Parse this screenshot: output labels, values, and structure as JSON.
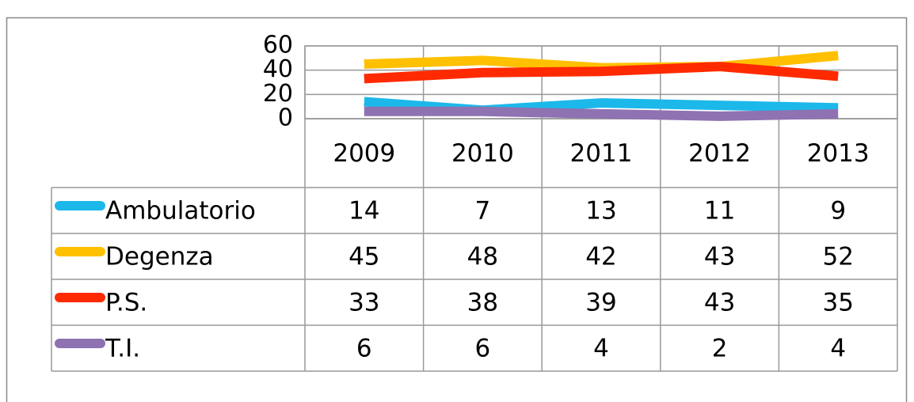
{
  "chart_data": {
    "type": "line",
    "categories": [
      "2009",
      "2010",
      "2011",
      "2012",
      "2013"
    ],
    "series": [
      {
        "name": "Ambulatorio",
        "color": "#1cb8ea",
        "values": [
          14,
          7,
          13,
          11,
          9
        ]
      },
      {
        "name": "Degenza",
        "color": "#ffc000",
        "values": [
          45,
          48,
          42,
          43,
          52
        ]
      },
      {
        "name": "P.S.",
        "color": "#ff2a00",
        "values": [
          33,
          38,
          39,
          43,
          35
        ]
      },
      {
        "name": "T.I.",
        "color": "#8e72b2",
        "values": [
          6,
          6,
          4,
          2,
          4
        ]
      }
    ],
    "ylim": [
      0,
      60
    ],
    "yticks": [
      0,
      20,
      40,
      60
    ],
    "grid": true,
    "legend": "table"
  }
}
